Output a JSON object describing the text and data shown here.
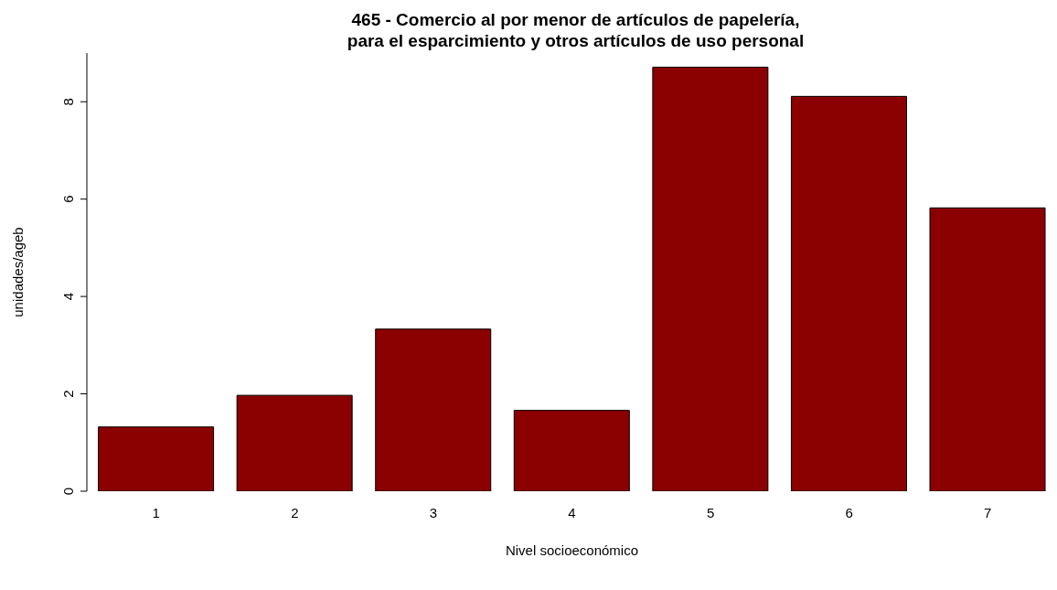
{
  "chart_data": {
    "type": "bar",
    "title": "465 - Comercio al por menor de artículos de papelería,\npara el esparcimiento y otros artículos de uso personal",
    "xlabel": "Nivel socioeconómico",
    "ylabel": "unidades/ageb",
    "categories": [
      "1",
      "2",
      "3",
      "4",
      "5",
      "6",
      "7"
    ],
    "values": [
      1.32,
      1.97,
      3.33,
      1.66,
      8.71,
      8.11,
      5.82
    ],
    "color": "#8b0000",
    "ylim": [
      0,
      9
    ],
    "yticks": [
      0,
      2,
      4,
      6,
      8
    ],
    "grid": false
  }
}
